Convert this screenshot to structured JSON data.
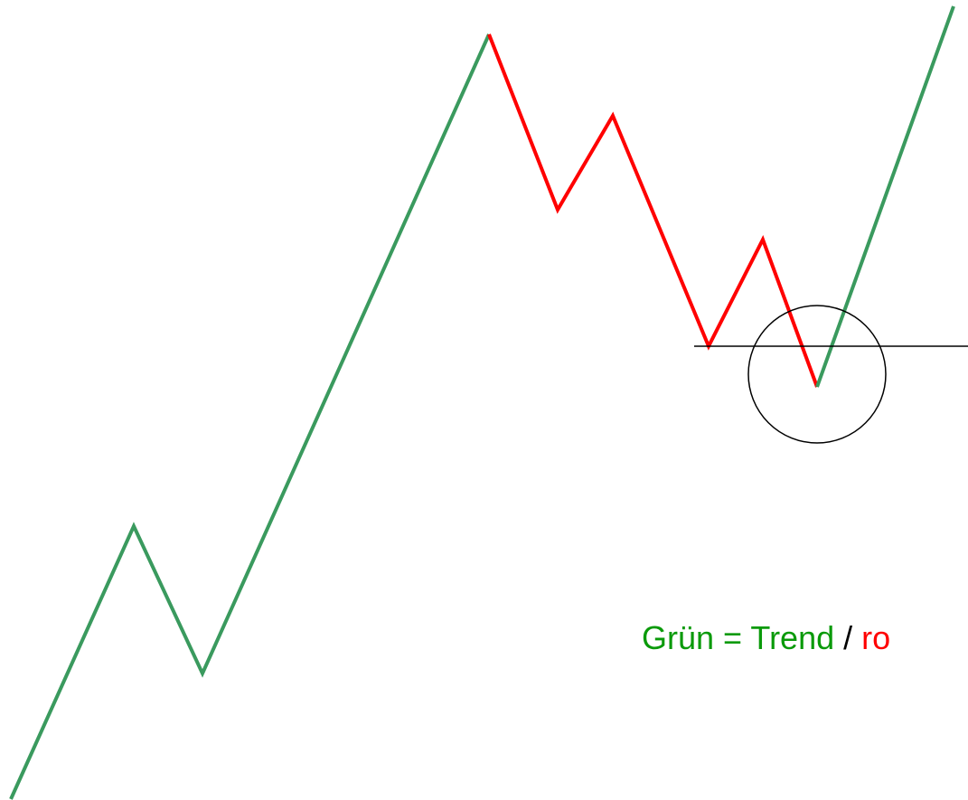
{
  "legend": {
    "trend": "Grün = Trend",
    "separator": "/",
    "correction": "ro"
  }
}
